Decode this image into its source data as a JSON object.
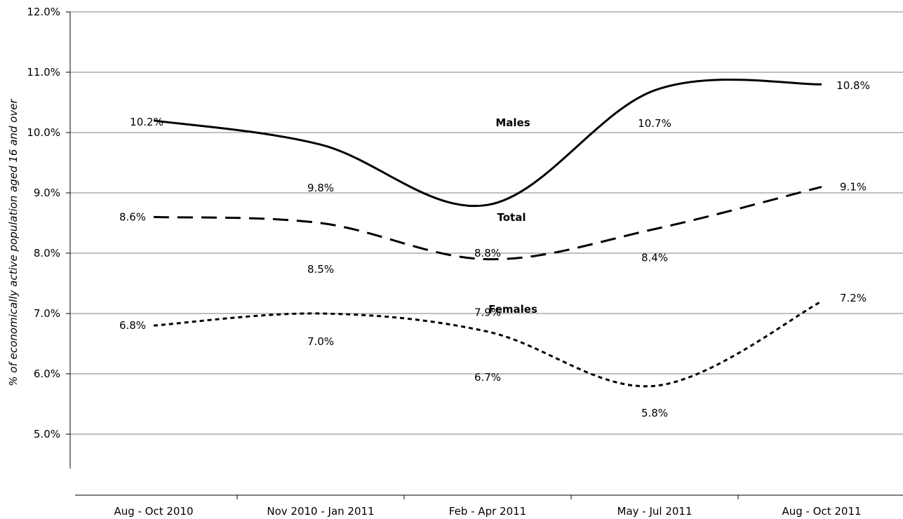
{
  "chart_data": {
    "type": "line",
    "title": "",
    "xlabel": "",
    "ylabel": "% of economically active population aged 16 and over",
    "categories": [
      "Aug - Oct 2010",
      "Nov 2010 - Jan 2011",
      "Feb - Apr 2011",
      "May - Jul 2011",
      "Aug - Oct 2011"
    ],
    "ylim": [
      4.0,
      12.0
    ],
    "yticks": [
      "5.0%",
      "6.0%",
      "7.0%",
      "8.0%",
      "9.0%",
      "10.0%",
      "11.0%",
      "12.0%"
    ],
    "grid": true,
    "legend": "none (series labelled directly on lines)",
    "series": [
      {
        "name": "Males",
        "style": "solid",
        "values": [
          10.2,
          9.8,
          8.8,
          10.7,
          10.8
        ],
        "labels": [
          "10.2%",
          "9.8%",
          "8.8%",
          "10.7%",
          "10.8%"
        ]
      },
      {
        "name": "Total",
        "style": "long-dash",
        "values": [
          8.6,
          8.5,
          7.9,
          8.4,
          9.1
        ],
        "labels": [
          "8.6%",
          "8.5%",
          "7.9%",
          "8.4%",
          "9.1%"
        ]
      },
      {
        "name": "Females",
        "style": "short-dash",
        "values": [
          6.8,
          7.0,
          6.7,
          5.8,
          7.2
        ],
        "labels": [
          "6.8%",
          "7.0%",
          "6.7%",
          "5.8%",
          "7.2%"
        ]
      }
    ]
  }
}
